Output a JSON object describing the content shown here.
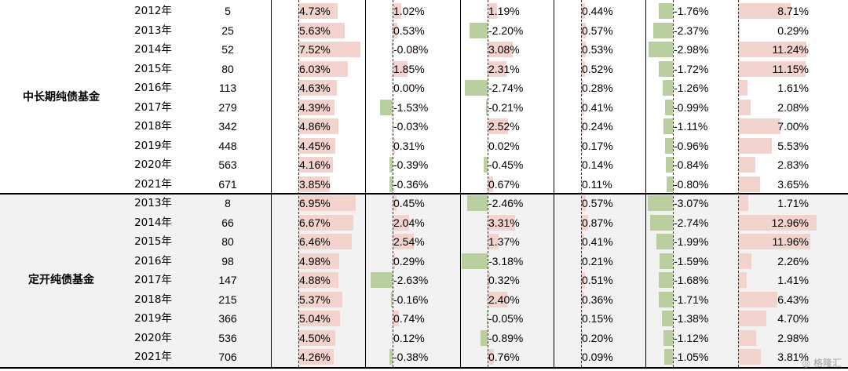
{
  "groups": [
    {
      "label": "中长期纯债基金",
      "rows": [
        {
          "year": "2012年",
          "count": "5",
          "vals": [
            "4.73%",
            "1.02%",
            "1.19%",
            "0.44%",
            "-1.76%",
            "8.71%"
          ]
        },
        {
          "year": "2013年",
          "count": "25",
          "vals": [
            "5.63%",
            "0.53%",
            "-2.20%",
            "0.57%",
            "-2.37%",
            "0.29%"
          ]
        },
        {
          "year": "2014年",
          "count": "52",
          "vals": [
            "7.52%",
            "-0.08%",
            "3.08%",
            "0.53%",
            "-2.98%",
            "11.24%"
          ]
        },
        {
          "year": "2015年",
          "count": "80",
          "vals": [
            "6.03%",
            "1.85%",
            "2.31%",
            "0.52%",
            "-1.72%",
            "11.15%"
          ]
        },
        {
          "year": "2016年",
          "count": "113",
          "vals": [
            "4.63%",
            "0.00%",
            "-2.74%",
            "0.28%",
            "-1.26%",
            "1.61%"
          ]
        },
        {
          "year": "2017年",
          "count": "279",
          "vals": [
            "4.39%",
            "-1.53%",
            "-0.21%",
            "0.41%",
            "-0.99%",
            "2.08%"
          ]
        },
        {
          "year": "2018年",
          "count": "342",
          "vals": [
            "4.86%",
            "-0.03%",
            "2.52%",
            "0.24%",
            "-1.11%",
            "7.00%"
          ]
        },
        {
          "year": "2019年",
          "count": "448",
          "vals": [
            "4.45%",
            "0.31%",
            "0.02%",
            "0.17%",
            "-0.96%",
            "5.53%"
          ]
        },
        {
          "year": "2020年",
          "count": "563",
          "vals": [
            "4.16%",
            "-0.39%",
            "-0.45%",
            "0.14%",
            "-0.84%",
            "2.83%"
          ]
        },
        {
          "year": "2021年",
          "count": "671",
          "vals": [
            "3.85%",
            "-0.36%",
            "0.67%",
            "0.11%",
            "-0.80%",
            "3.65%"
          ]
        }
      ]
    },
    {
      "label": "定开纯债基金",
      "rows": [
        {
          "year": "2013年",
          "count": "8",
          "vals": [
            "6.95%",
            "0.45%",
            "-2.46%",
            "0.57%",
            "-3.07%",
            "1.71%"
          ]
        },
        {
          "year": "2014年",
          "count": "66",
          "vals": [
            "6.67%",
            "2.04%",
            "3.31%",
            "0.87%",
            "-2.74%",
            "12.96%"
          ]
        },
        {
          "year": "2015年",
          "count": "80",
          "vals": [
            "6.46%",
            "2.54%",
            "1.37%",
            "0.41%",
            "-1.99%",
            "11.96%"
          ]
        },
        {
          "year": "2016年",
          "count": "98",
          "vals": [
            "4.98%",
            "0.29%",
            "-3.18%",
            "0.21%",
            "-1.59%",
            "2.26%"
          ]
        },
        {
          "year": "2017年",
          "count": "147",
          "vals": [
            "4.88%",
            "-2.63%",
            "0.32%",
            "0.51%",
            "-1.68%",
            "1.41%"
          ]
        },
        {
          "year": "2018年",
          "count": "215",
          "vals": [
            "5.37%",
            "-0.16%",
            "2.40%",
            "0.36%",
            "-1.71%",
            "6.43%"
          ]
        },
        {
          "year": "2019年",
          "count": "366",
          "vals": [
            "5.04%",
            "0.74%",
            "-0.05%",
            "0.15%",
            "-1.38%",
            "4.70%"
          ]
        },
        {
          "year": "2020年",
          "count": "536",
          "vals": [
            "4.50%",
            "0.12%",
            "-0.89%",
            "0.20%",
            "-1.12%",
            "2.98%"
          ]
        },
        {
          "year": "2021年",
          "count": "706",
          "vals": [
            "4.26%",
            "-0.38%",
            "0.76%",
            "0.09%",
            "-1.05%",
            "3.81%"
          ]
        }
      ]
    }
  ],
  "watermark": "格隆汇",
  "colors": {
    "positive": "#f3d3cd",
    "negative": "#b9cf9f",
    "group2_bg": "#f2f2f2"
  }
}
